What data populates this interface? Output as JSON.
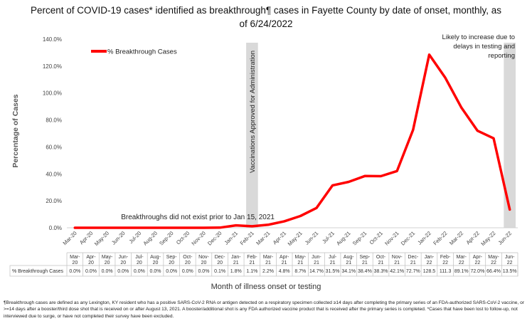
{
  "chart_data": {
    "type": "line",
    "title": "Percent of COVID-19 cases* identified as breakthrough¶ cases in Fayette County by date of onset, monthly, as of 6/24/2022",
    "xlabel": "Month of illness onset or testing",
    "ylabel": "Percentage of Cases",
    "ylim": [
      0,
      140
    ],
    "yticks": [
      "0.0%",
      "20.0%",
      "40.0%",
      "60.0%",
      "80.0%",
      "100.0%",
      "120.0%",
      "140.0%"
    ],
    "grid": false,
    "legend_position": "top-left",
    "categories": [
      "Mar-20",
      "Apr-20",
      "May-20",
      "Jun-20",
      "Jul-20",
      "Aug-20",
      "Sep-20",
      "Oct-20",
      "Nov-20",
      "Dec-20",
      "Jan-21",
      "Feb-21",
      "Mar-21",
      "Apr-21",
      "May-21",
      "Jun-21",
      "Jul-21",
      "Aug-21",
      "Sep-21",
      "Oct-21",
      "Nov-21",
      "Dec-21",
      "Jan-22",
      "Feb-22",
      "Mar-22",
      "Apr-22",
      "May-22",
      "Jun-22"
    ],
    "table_categories": [
      [
        "Mar-",
        "20"
      ],
      [
        "Apr-",
        "20"
      ],
      [
        "May-",
        "20"
      ],
      [
        "Jun-",
        "20"
      ],
      [
        "Jul-",
        "20"
      ],
      [
        "Aug-",
        "20"
      ],
      [
        "Sep-",
        "20"
      ],
      [
        "Oct-",
        "20"
      ],
      [
        "Nov-",
        "20"
      ],
      [
        "Dec-",
        "20"
      ],
      [
        "Jan-",
        "21"
      ],
      [
        "Feb-",
        "21"
      ],
      [
        "Mar-",
        "21"
      ],
      [
        "Apr-",
        "21"
      ],
      [
        "May-",
        "21"
      ],
      [
        "Jun-",
        "21"
      ],
      [
        "Jul-",
        "21"
      ],
      [
        "Aug-",
        "21"
      ],
      [
        "Sep-",
        "21"
      ],
      [
        "Oct-",
        "21"
      ],
      [
        "Nov-",
        "21"
      ],
      [
        "Dec-",
        "21"
      ],
      [
        "Jan-",
        "22"
      ],
      [
        "Feb-",
        "22"
      ],
      [
        "Mar-",
        "22"
      ],
      [
        "Apr-",
        "22"
      ],
      [
        "May-",
        "22"
      ],
      [
        "Jun-",
        "22"
      ]
    ],
    "series": [
      {
        "name": "% Breakthrough Cases",
        "color": "#ff0000",
        "values": [
          0,
          0,
          0,
          0,
          0,
          0,
          0,
          0,
          0,
          0.1,
          1.8,
          1.1,
          2.2,
          4.8,
          8.7,
          14.7,
          31.5,
          34.1,
          38.4,
          38.3,
          42.1,
          72.7,
          128.5,
          111.3,
          89.1,
          72.0,
          66.4,
          13.5
        ],
        "labels": [
          "0.0%",
          "0.0%",
          "0.0%",
          "0.0%",
          "0.0%",
          "0.0%",
          "0.0%",
          "0.0%",
          "0.0%",
          "0.1%",
          "1.8%",
          "1.1%",
          "2.2%",
          "4.8%",
          "8.7%",
          "14.7%",
          "31.5%",
          "34.1%",
          "38.4%",
          "38.3%",
          "42.1%",
          "72.7%",
          "128.5",
          "111.3",
          "89.1%",
          "72.0%",
          "66.4%",
          "13.5%"
        ]
      }
    ],
    "shaded_bands": [
      {
        "category": "Feb-21",
        "label": "Vaccinations Approved for Administration",
        "color": "#d9d9d9"
      },
      {
        "category": "Jun-22",
        "label": "Likely to increase due to delays in testing and reporting",
        "color": "#d9d9d9"
      }
    ],
    "annotations": [
      {
        "text": "Breakthroughs did not exist prior to Jan 15, 2021",
        "category": "Jun-20",
        "value": 8
      }
    ]
  },
  "footnote": "¶Breakthrough cases are defined as any Lexington, KY resident who has a positive SARS-CoV-2 RNA or antigen detected on a respiratory specimen collected ≥14 days after completing the primary series of an FDA-authorized SARS-CoV-2 vaccine, or >=14 days after a booster/third dose shot that is received on or after August 13, 2021.  A booster/additional shot is any FDA authorized vaccine product that is received after the primary series is completed. *Cases that have been lost to follow-up, not interviewed due to surge, or have not completed their survey have been excluded."
}
